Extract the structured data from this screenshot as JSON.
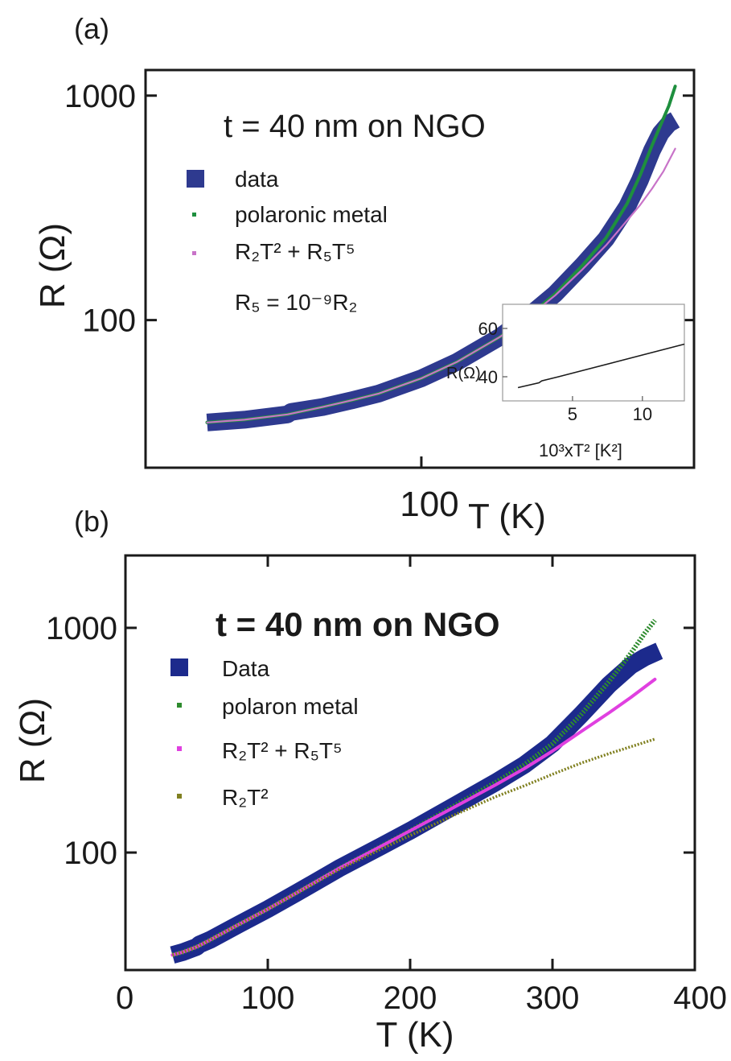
{
  "chart_data": [
    {
      "panel_label": "(a)",
      "type": "line",
      "title": "t = 40 nm on NGO",
      "xlabel": "T (K)",
      "ylabel": "R (Ω)",
      "x_scale": "log",
      "y_scale": "log",
      "xlim": [
        24,
        410
      ],
      "ylim": [
        22,
        1300
      ],
      "x_ticks": [
        {
          "value": 100,
          "label": "100"
        }
      ],
      "y_ticks": [
        {
          "value": 100,
          "label": "100"
        },
        {
          "value": 1000,
          "label": "1000"
        }
      ],
      "legend_placement": "top-left",
      "legend": [
        "data",
        "polaronic metal",
        "R₂T² + R₅T⁵",
        "R₅ = 10⁻⁹R₂"
      ],
      "annotation_text": "R₅ = 10⁻⁹R₂",
      "series": [
        {
          "name": "data",
          "style": "thick-band",
          "color": "#2e3a8f",
          "x": [
            33,
            40,
            50,
            51,
            60,
            70,
            80,
            100,
            120,
            150,
            180,
            200,
            230,
            260,
            290,
            310,
            330,
            345,
            360,
            372
          ],
          "y": [
            35,
            36,
            38,
            39,
            41,
            44,
            47,
            55,
            65,
            84,
            110,
            131,
            175,
            230,
            320,
            420,
            570,
            680,
            750,
            780
          ]
        },
        {
          "name": "polaronic metal",
          "style": "line",
          "color": "#1e8f3e",
          "x": [
            33,
            40,
            50,
            60,
            70,
            80,
            100,
            120,
            150,
            180,
            200,
            230,
            260,
            290,
            310,
            330,
            345,
            360,
            372
          ],
          "y": [
            35,
            36,
            38,
            41,
            44,
            47,
            55,
            65,
            84,
            110,
            131,
            175,
            232,
            330,
            440,
            600,
            740,
            900,
            1100
          ]
        },
        {
          "name": "R₂T² + R₅T⁵",
          "style": "thin-line",
          "color": "#c873c8",
          "x": [
            33,
            40,
            50,
            60,
            70,
            80,
            100,
            120,
            150,
            180,
            200,
            230,
            260,
            290,
            310,
            330,
            350,
            372
          ],
          "y": [
            35,
            36,
            38,
            41,
            44,
            47,
            55,
            65,
            84,
            109,
            129,
            168,
            215,
            278,
            325,
            385,
            460,
            580
          ]
        }
      ],
      "inset": {
        "xlabel": "10³xT² [K²]",
        "ylabel": "R(Ω)",
        "xlim": [
          0,
          13
        ],
        "ylim": [
          30,
          70
        ],
        "x_ticks": [
          {
            "value": 5,
            "label": "5"
          },
          {
            "value": 10,
            "label": "10"
          }
        ],
        "y_ticks": [
          {
            "value": 40,
            "label": "40"
          },
          {
            "value": 60,
            "label": "60"
          }
        ],
        "series": [
          {
            "style": "line",
            "color": "#1a1a1a",
            "x": [
              1.1,
              2.6,
              2.8,
              4,
              6,
              8,
              10,
              12,
              13
            ],
            "y": [
              35.5,
              37.5,
              38.3,
              40,
              43,
              46,
              49,
              52,
              53.5
            ]
          }
        ]
      }
    },
    {
      "panel_label": "(b)",
      "type": "line",
      "title": "t = 40 nm on NGO",
      "xlabel": "T (K)",
      "ylabel": "R (Ω)",
      "x_scale": "linear",
      "y_scale": "log",
      "xlim": [
        0,
        400
      ],
      "ylim": [
        30,
        2100
      ],
      "x_ticks": [
        {
          "value": 0,
          "label": "0"
        },
        {
          "value": 100,
          "label": "100"
        },
        {
          "value": 200,
          "label": "200"
        },
        {
          "value": 300,
          "label": "300"
        },
        {
          "value": 400,
          "label": "400"
        }
      ],
      "y_ticks": [
        {
          "value": 100,
          "label": "100"
        },
        {
          "value": 1000,
          "label": "1000"
        }
      ],
      "legend_placement": "top-left",
      "legend": [
        "Data",
        "polaron metal",
        "R₂T² + R₅T⁵",
        "R₂T²"
      ],
      "series": [
        {
          "name": "Data",
          "style": "thick-band",
          "color": "#1c2a8c",
          "x": [
            33,
            40,
            50,
            52,
            60,
            80,
            100,
            120,
            150,
            180,
            200,
            230,
            260,
            280,
            300,
            320,
            340,
            355,
            365,
            375
          ],
          "y": [
            35,
            36,
            38,
            39,
            41,
            48,
            56,
            66,
            85,
            107,
            125,
            160,
            205,
            245,
            305,
            410,
            560,
            680,
            740,
            790
          ]
        },
        {
          "name": "polaron metal",
          "style": "dotted-thick",
          "color": "#2e8b2e",
          "x": [
            33,
            40,
            50,
            60,
            80,
            100,
            120,
            150,
            180,
            200,
            230,
            260,
            280,
            300,
            320,
            340,
            355,
            365,
            372
          ],
          "y": [
            35,
            36,
            38,
            41,
            48,
            56,
            66,
            85,
            107,
            125,
            160,
            205,
            245,
            305,
            410,
            580,
            770,
            950,
            1080
          ]
        },
        {
          "name": "R₂T² + R₅T⁵",
          "style": "line",
          "color": "#e040e0",
          "x": [
            33,
            40,
            50,
            60,
            80,
            100,
            120,
            150,
            180,
            200,
            230,
            260,
            280,
            300,
            320,
            340,
            355,
            372
          ],
          "y": [
            35,
            36,
            38,
            41,
            48,
            56,
            66,
            85,
            107,
            125,
            158,
            200,
            236,
            283,
            345,
            420,
            490,
            590
          ]
        },
        {
          "name": "R₂T²",
          "style": "dotted",
          "color": "#808020",
          "x": [
            33,
            40,
            50,
            60,
            80,
            100,
            120,
            150,
            180,
            200,
            230,
            260,
            280,
            300,
            320,
            340,
            372
          ],
          "y": [
            35,
            36,
            38,
            41,
            48,
            56,
            66,
            84,
            104,
            119,
            146,
            177,
            198,
            223,
            250,
            276,
            320
          ]
        }
      ]
    }
  ]
}
